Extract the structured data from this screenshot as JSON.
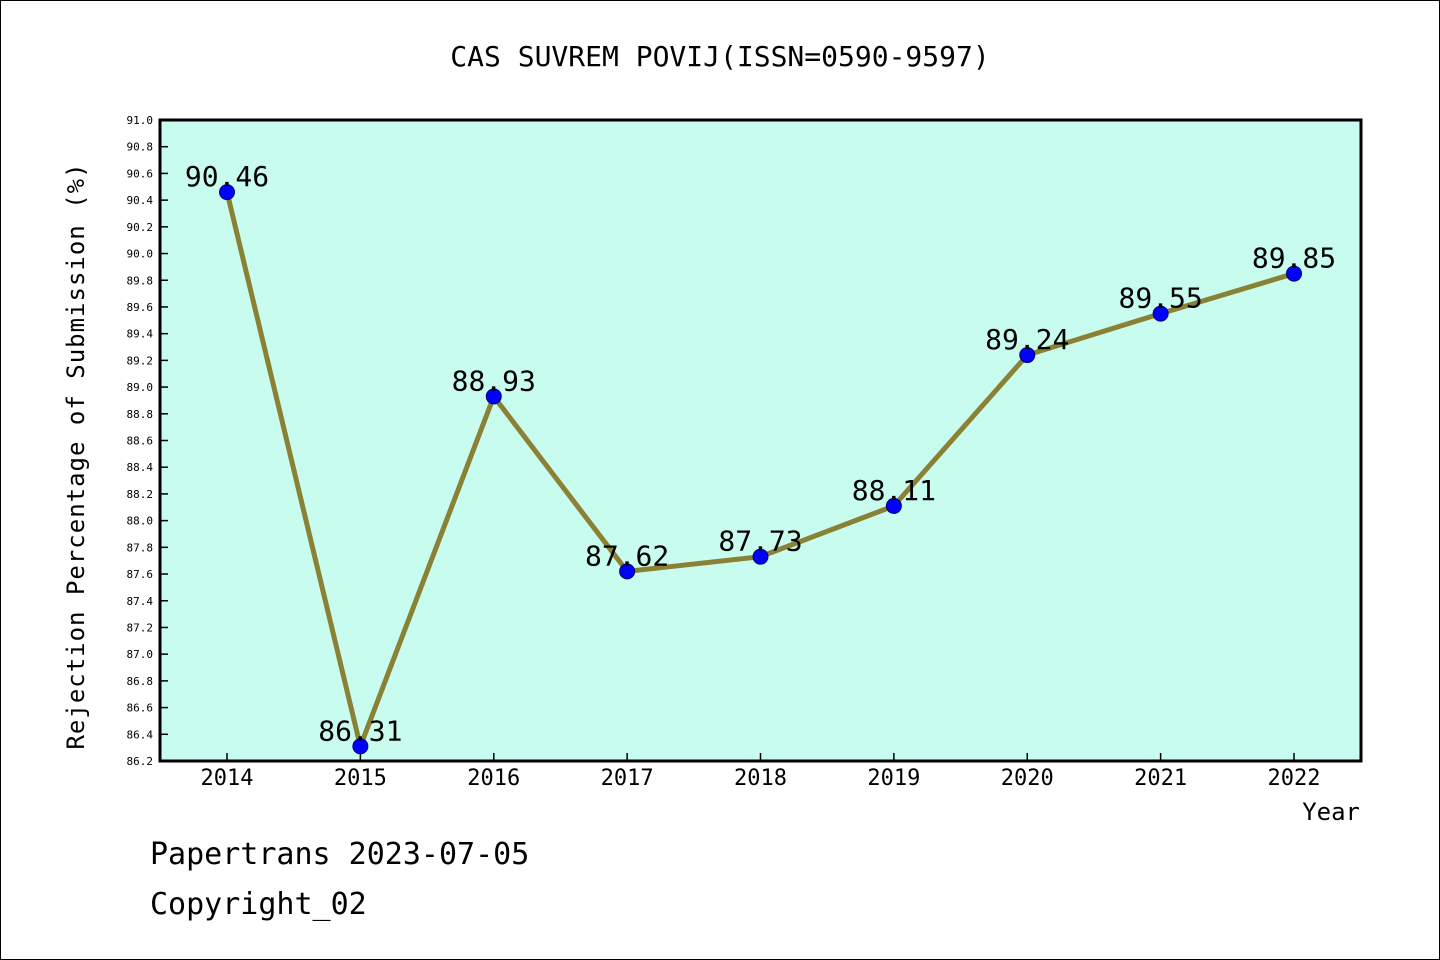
{
  "chart_data": {
    "type": "line",
    "title": "CAS SUVREM POVIJ(ISSN=0590-9597)",
    "xlabel": "Year",
    "ylabel": "Rejection Percentage of Submission (%)",
    "categories": [
      "2014",
      "2015",
      "2016",
      "2017",
      "2018",
      "2019",
      "2020",
      "2021",
      "2022"
    ],
    "series": [
      {
        "values": [
          90.46,
          86.31,
          88.93,
          87.62,
          87.73,
          88.11,
          89.24,
          89.55,
          89.85
        ],
        "data_labels": [
          "90.46",
          "86.31",
          "88.93",
          "87.62",
          "87.73",
          "88.11",
          "89.24",
          "89.55",
          "89.85"
        ]
      }
    ],
    "ylim": [
      86.2,
      91.0
    ],
    "yticks": [
      "86.2",
      "86.4",
      "86.6",
      "86.8",
      "87.0",
      "87.2",
      "87.4",
      "87.6",
      "87.8",
      "88.0",
      "88.2",
      "88.4",
      "88.6",
      "88.8",
      "89.0",
      "89.2",
      "89.4",
      "89.6",
      "89.8",
      "90.0",
      "90.2",
      "90.4",
      "90.6",
      "90.8",
      "91.0"
    ],
    "grid": false,
    "colors": {
      "plot_background": "#c8fcee",
      "line": "#8b8135",
      "marker": "#0000ff"
    }
  },
  "footer": {
    "line1": "Papertrans 2023-07-05",
    "line2": "Copyright_02"
  }
}
